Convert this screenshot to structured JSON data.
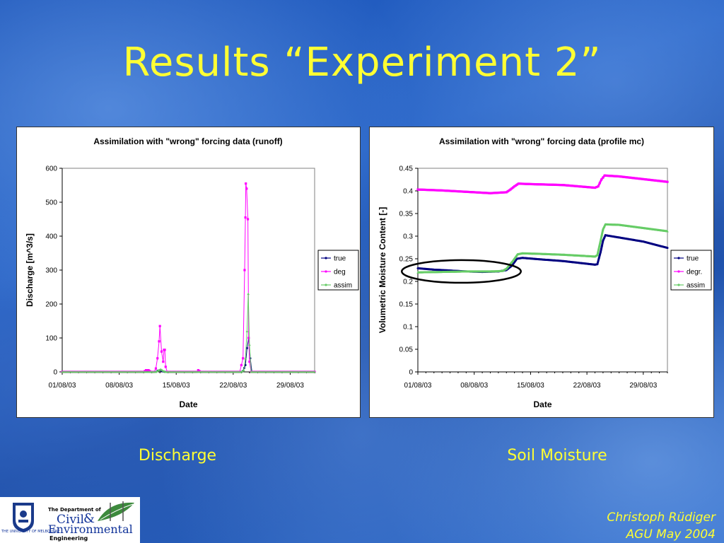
{
  "slide": {
    "title": "Results “Experiment 2”",
    "caption_left": "Discharge",
    "caption_right": "Soil Moisture",
    "author": "Christoph Rüdiger",
    "event": "AGU May 2004",
    "logo": {
      "dept_line": "The Department of",
      "civil": "Civil",
      "amp": "&",
      "environmental": "Environmental",
      "engineering": "Engineering",
      "university": "THE UNIVERSITY OF MELBOURNE"
    }
  },
  "colors": {
    "title": "#ffff33",
    "true": "#000080",
    "deg": "#ff00ff",
    "assim": "#66cc66"
  },
  "chart_data": [
    {
      "type": "line",
      "title": "Assimilation with \"wrong\" forcing data (runoff)",
      "xlabel": "Date",
      "ylabel": "Discharge [m^3/s]",
      "xlim": [
        "01/08/03",
        "01/09/03"
      ],
      "ylim": [
        0,
        600
      ],
      "x_ticks": [
        "01/08/03",
        "08/08/03",
        "15/08/03",
        "22/08/03",
        "29/08/03"
      ],
      "y_ticks": [
        "0",
        "100",
        "200",
        "300",
        "400",
        "500",
        "600"
      ],
      "grid": false,
      "legend_position": "right",
      "series": [
        {
          "name": "true",
          "color": "#000080",
          "points": [
            [
              0,
              0
            ],
            [
              11.5,
              0
            ],
            [
              11.7,
              3
            ],
            [
              12,
              5
            ],
            [
              12.3,
              2
            ],
            [
              12.6,
              0
            ],
            [
              22,
              0
            ],
            [
              22.2,
              3
            ],
            [
              22.5,
              20
            ],
            [
              22.7,
              70
            ],
            [
              22.9,
              100
            ],
            [
              23.1,
              40
            ],
            [
              23.3,
              0
            ],
            [
              31,
              0
            ]
          ]
        },
        {
          "name": "deg",
          "color": "#ff00ff",
          "points": [
            [
              0,
              0
            ],
            [
              10,
              0
            ],
            [
              10.3,
              5
            ],
            [
              10.6,
              5
            ],
            [
              10.9,
              0
            ],
            [
              11.3,
              0
            ],
            [
              11.5,
              10
            ],
            [
              11.7,
              40
            ],
            [
              11.9,
              90
            ],
            [
              12.0,
              135
            ],
            [
              12.2,
              60
            ],
            [
              12.4,
              30
            ],
            [
              12.5,
              65
            ],
            [
              12.6,
              65
            ],
            [
              12.7,
              15
            ],
            [
              12.9,
              0
            ],
            [
              16.5,
              0
            ],
            [
              16.7,
              5
            ],
            [
              17.0,
              0
            ],
            [
              21.8,
              0
            ],
            [
              22.0,
              20
            ],
            [
              22.2,
              40
            ],
            [
              22.4,
              300
            ],
            [
              22.5,
              455
            ],
            [
              22.55,
              555
            ],
            [
              22.65,
              540
            ],
            [
              22.8,
              450
            ],
            [
              22.9,
              100
            ],
            [
              23.0,
              30
            ],
            [
              23.2,
              0
            ],
            [
              31,
              0
            ]
          ]
        },
        {
          "name": "assim",
          "color": "#66cc66",
          "points": [
            [
              0,
              0
            ],
            [
              11.5,
              0
            ],
            [
              11.8,
              4
            ],
            [
              12.1,
              8
            ],
            [
              12.4,
              3
            ],
            [
              12.7,
              0
            ],
            [
              22,
              0
            ],
            [
              22.3,
              5
            ],
            [
              22.5,
              40
            ],
            [
              22.7,
              120
            ],
            [
              22.85,
              230
            ],
            [
              23.0,
              80
            ],
            [
              23.2,
              0
            ],
            [
              31,
              0
            ]
          ]
        }
      ]
    },
    {
      "type": "line",
      "title": "Assimilation with \"wrong\" forcing data (profile mc)",
      "xlabel": "Date",
      "ylabel": "Volumetric Moisture Content [-]",
      "xlim": [
        "01/08/03",
        "01/09/03"
      ],
      "ylim": [
        0,
        0.45
      ],
      "x_ticks": [
        "01/08/03",
        "08/08/03",
        "15/08/03",
        "22/08/03",
        "29/08/03"
      ],
      "y_ticks": [
        "0",
        "0.05",
        "0.1",
        "0.15",
        "0.2",
        "0.25",
        "0.3",
        "0.35",
        "0.4",
        "0.45"
      ],
      "grid": false,
      "legend_position": "right",
      "annotation": "ellipse around early-period series",
      "annotation_range": {
        "x": [
          -2,
          12.8
        ],
        "y": [
          0.197,
          0.247
        ]
      },
      "series": [
        {
          "name": "true",
          "color": "#000080",
          "points": [
            [
              0,
              0.229
            ],
            [
              2,
              0.226
            ],
            [
              4,
              0.224
            ],
            [
              6,
              0.222
            ],
            [
              8,
              0.221
            ],
            [
              10,
              0.222
            ],
            [
              11,
              0.225
            ],
            [
              11.7,
              0.235
            ],
            [
              12.3,
              0.25
            ],
            [
              13,
              0.252
            ],
            [
              15,
              0.249
            ],
            [
              18,
              0.245
            ],
            [
              20,
              0.241
            ],
            [
              22,
              0.237
            ],
            [
              22.3,
              0.238
            ],
            [
              22.7,
              0.265
            ],
            [
              23,
              0.29
            ],
            [
              23.3,
              0.302
            ],
            [
              25,
              0.297
            ],
            [
              28,
              0.288
            ],
            [
              31,
              0.274
            ]
          ]
        },
        {
          "name": "degr.",
          "color": "#ff00ff",
          "points": [
            [
              0,
              0.403
            ],
            [
              3,
              0.401
            ],
            [
              6,
              0.398
            ],
            [
              9,
              0.395
            ],
            [
              10,
              0.396
            ],
            [
              11,
              0.397
            ],
            [
              11.5,
              0.403
            ],
            [
              12,
              0.41
            ],
            [
              12.5,
              0.416
            ],
            [
              14,
              0.415
            ],
            [
              16,
              0.414
            ],
            [
              18,
              0.413
            ],
            [
              20,
              0.41
            ],
            [
              22,
              0.407
            ],
            [
              22.4,
              0.41
            ],
            [
              22.8,
              0.425
            ],
            [
              23.2,
              0.434
            ],
            [
              25,
              0.432
            ],
            [
              28,
              0.426
            ],
            [
              31,
              0.42
            ]
          ]
        },
        {
          "name": "assim",
          "color": "#66cc66",
          "points": [
            [
              0,
              0.22
            ],
            [
              3,
              0.221
            ],
            [
              6,
              0.222
            ],
            [
              9,
              0.222
            ],
            [
              10.5,
              0.223
            ],
            [
              11,
              0.228
            ],
            [
              11.8,
              0.245
            ],
            [
              12.4,
              0.26
            ],
            [
              13,
              0.262
            ],
            [
              15,
              0.261
            ],
            [
              18,
              0.259
            ],
            [
              20,
              0.257
            ],
            [
              22,
              0.255
            ],
            [
              22.3,
              0.258
            ],
            [
              22.7,
              0.29
            ],
            [
              23,
              0.315
            ],
            [
              23.3,
              0.326
            ],
            [
              25,
              0.325
            ],
            [
              28,
              0.318
            ],
            [
              31,
              0.311
            ]
          ]
        }
      ]
    }
  ]
}
